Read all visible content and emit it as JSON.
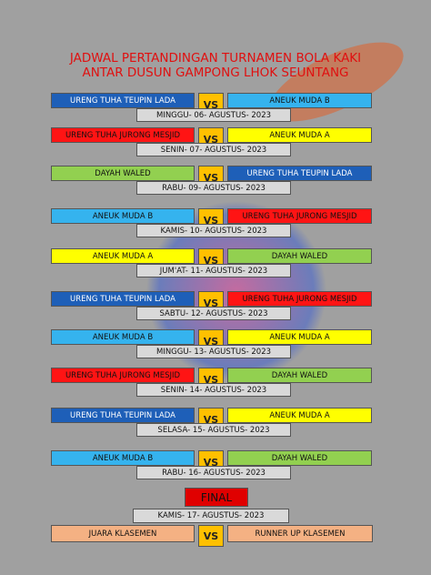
{
  "header": {
    "title_line1": "JADWAL PERTANDINGAN TURNAMEN BOLA KAKI",
    "title_line2": "ANTAR DUSUN GAMPONG LHOK SEUNTANG"
  },
  "matches": [
    {
      "left": "URENG TUHA TEUPIN LADA",
      "left_color": "#1e5fb8",
      "vs": "VS",
      "right": "ANEUK MUDA B",
      "right_color": "#35b3ee",
      "date": "MINGGU- 06- AGUSTUS- 2023"
    },
    {
      "left": "URENG TUHA JURONG MESJID",
      "left_color": "#ff1414",
      "vs": "VS",
      "right": "ANEUK MUDA A",
      "right_color": "#ffff00",
      "date": "SENIN- 07- AGUSTUS- 2023"
    },
    {
      "left": "DAYAH WALED",
      "left_color": "#92d050",
      "vs": "VS",
      "right": "URENG TUHA TEUPIN LADA",
      "right_color": "#1e5fb8",
      "date": "RABU- 09- AGUSTUS- 2023"
    },
    {
      "left": "ANEUK MUDA B",
      "left_color": "#35b3ee",
      "vs": "VS",
      "right": "URENG TUHA JURONG MESJID",
      "right_color": "#ff1414",
      "date": "KAMIS- 10- AGUSTUS- 2023"
    },
    {
      "left": "ANEUK MUDA A",
      "left_color": "#ffff00",
      "vs": "VS",
      "right": "DAYAH WALED",
      "right_color": "#92d050",
      "date": "JUM'AT- 11- AGUSTUS- 2023"
    },
    {
      "left": "URENG TUHA TEUPIN LADA",
      "left_color": "#1e5fb8",
      "vs": "VS",
      "right": "URENG TUHA JURONG MESJID",
      "right_color": "#ff1414",
      "date": "SABTU- 12- AGUSTUS- 2023"
    },
    {
      "left": "ANEUK MUDA B",
      "left_color": "#35b3ee",
      "vs": "VS",
      "right": "ANEUK MUDA A",
      "right_color": "#ffff00",
      "date": "MINGGU- 13- AGUSTUS- 2023"
    },
    {
      "left": "URENG TUHA JURONG MESJID",
      "left_color": "#ff1414",
      "vs": "VS",
      "right": "DAYAH WALED",
      "right_color": "#92d050",
      "date": "SENIN- 14- AGUSTUS- 2023"
    },
    {
      "left": "URENG TUHA TEUPIN LADA",
      "left_color": "#1e5fb8",
      "vs": "VS",
      "right": "ANEUK MUDA A",
      "right_color": "#ffff00",
      "date": "SELASA- 15- AGUSTUS- 2023"
    },
    {
      "left": "ANEUK MUDA B",
      "left_color": "#35b3ee",
      "vs": "VS",
      "right": "DAYAH WALED",
      "right_color": "#92d050",
      "date": "RABU- 16- AGUSTUS- 2023"
    }
  ],
  "final": {
    "label": "FINAL",
    "date": "KAMIS- 17- AGUSTUS- 2023",
    "left": "JUARA KLASEMEN",
    "vs": "VS",
    "right": "RUNNER UP KLASEMEN"
  }
}
